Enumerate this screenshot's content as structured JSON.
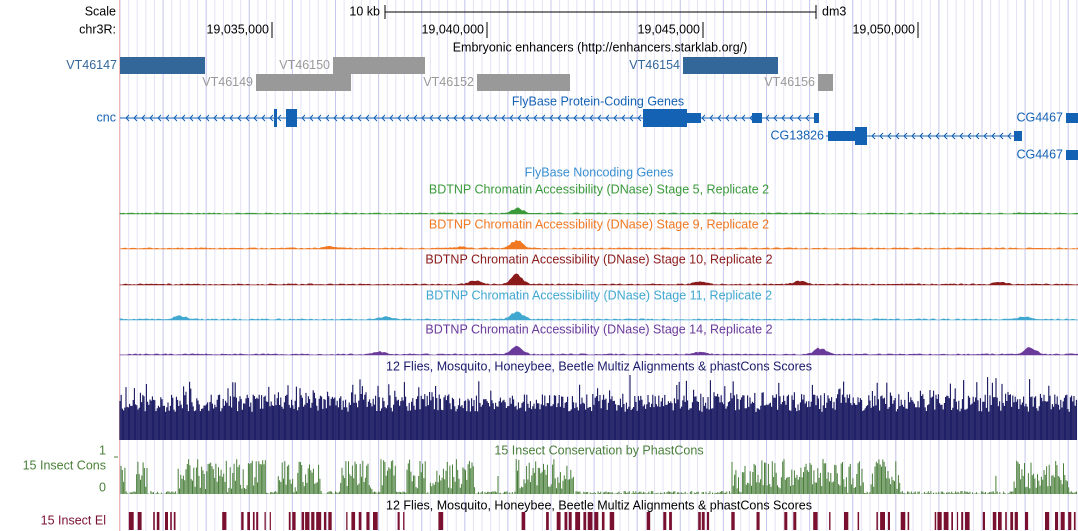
{
  "header": {
    "scale_label": "Scale",
    "scale_bar": "10 kb",
    "assembly": "dm3",
    "chrom": "chr3R:",
    "positions": [
      "19,035,000",
      "19,040,000",
      "19,045,000",
      "19,050,000"
    ]
  },
  "enhancers": {
    "title": "Embryonic enhancers (http://enhancers.starklab.org/)",
    "items": [
      "VT46147",
      "VT46150",
      "VT46149",
      "VT46152",
      "VT46154",
      "VT46156"
    ]
  },
  "genes": {
    "title": "FlyBase Protein-Coding Genes",
    "labels": [
      "cnc",
      "CG13826",
      "CG4467",
      "CG4467"
    ]
  },
  "noncoding": {
    "title": "FlyBase Noncoding Genes"
  },
  "dnase_tracks": [
    "BDTNP Chromatin Accessibility (DNase) Stage 5, Replicate 2",
    "BDTNP Chromatin Accessibility (DNase) Stage 9, Replicate 2",
    "BDTNP Chromatin Accessibility (DNase) Stage 10, Replicate 2",
    "BDTNP Chromatin Accessibility (DNase) Stage 11, Replicate 2",
    "BDTNP Chromatin Accessibility (DNase) Stage 14, Replicate 2"
  ],
  "alignments": {
    "titles": [
      "12 Flies, Mosquito, Honeybee, Beetle Multiz Alignments & phastCons Scores",
      "12 Flies, Mosquito, Honeybee, Beetle Multiz Alignments & phastCons Scores"
    ]
  },
  "conservation": {
    "title": "15 Insect Conservation by PhastCons",
    "label": "15 Insect Cons",
    "axis_max": 1,
    "axis_min": 0
  },
  "elements": {
    "label": "15 Insect El"
  }
}
